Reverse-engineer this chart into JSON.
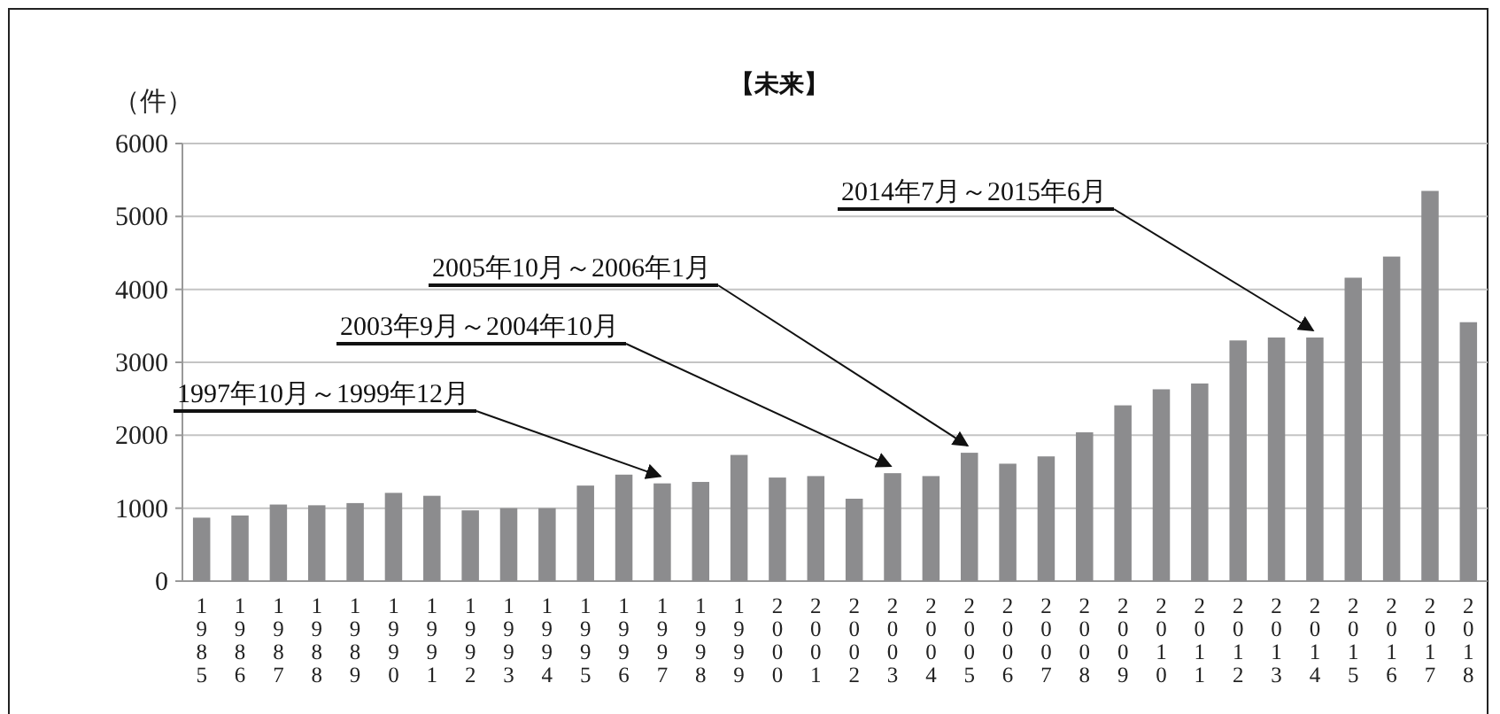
{
  "chart_data": {
    "type": "bar",
    "title": "【未来】",
    "ylabel": "（件）",
    "categories": [
      "1985",
      "1986",
      "1987",
      "1988",
      "1989",
      "1990",
      "1991",
      "1992",
      "1993",
      "1994",
      "1995",
      "1996",
      "1997",
      "1998",
      "1999",
      "2000",
      "2001",
      "2002",
      "2003",
      "2004",
      "2005",
      "2006",
      "2007",
      "2008",
      "2009",
      "2010",
      "2011",
      "2012",
      "2013",
      "2014",
      "2015",
      "2016",
      "2017",
      "2018"
    ],
    "values": [
      870,
      900,
      1050,
      1040,
      1070,
      1210,
      1170,
      970,
      1000,
      1000,
      1310,
      1460,
      1340,
      1360,
      1730,
      1420,
      1440,
      1130,
      1480,
      1440,
      1760,
      1610,
      1710,
      2040,
      2410,
      2630,
      2710,
      3300,
      3340,
      3340,
      4160,
      4450,
      5350,
      3550
    ],
    "color": "#8c8c8e",
    "ylim": [
      0,
      6000
    ],
    "yticks": [
      0,
      1000,
      2000,
      3000,
      4000,
      5000,
      6000
    ],
    "grid": "y",
    "annotations": [
      {
        "text": "1997年10月～1999年12月",
        "x": "1997",
        "y": 1340
      },
      {
        "text": "2003年9月～2004年10月",
        "x": "2003",
        "y": 1480
      },
      {
        "text": "2005年10月～2006年1月",
        "x": "2005",
        "y": 1760
      },
      {
        "text": "2014年7月～2015年6月",
        "x": "2014",
        "y": 3340
      }
    ]
  }
}
